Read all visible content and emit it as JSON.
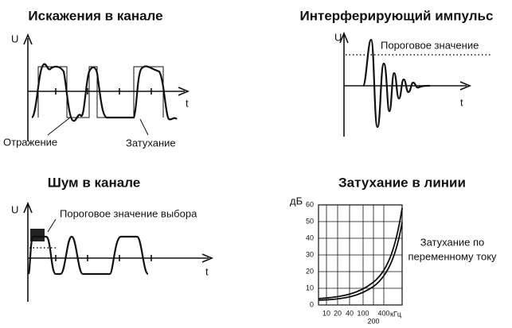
{
  "panels": [
    {
      "title": "Искажения в канале",
      "axis_y": "U",
      "axis_x": "t",
      "labels": [
        "Отражение",
        "Затухание"
      ]
    },
    {
      "title": "Интерферирующий импульс",
      "axis_y": "U",
      "axis_x": "t",
      "labels": [
        "Пороговое значение"
      ]
    },
    {
      "title": "Шум в канале",
      "axis_y": "U",
      "axis_x": "t",
      "labels": [
        "Пороговое значение выбора"
      ]
    },
    {
      "title": "Затухание в линии",
      "axis_y": "дБ",
      "yticks": [
        0,
        10,
        20,
        30,
        40,
        50,
        60
      ],
      "xticks": [
        10,
        20,
        40,
        100,
        200,
        400
      ],
      "axis_x": "кГц",
      "note": [
        "Затухание по",
        "переменному току"
      ]
    }
  ]
}
